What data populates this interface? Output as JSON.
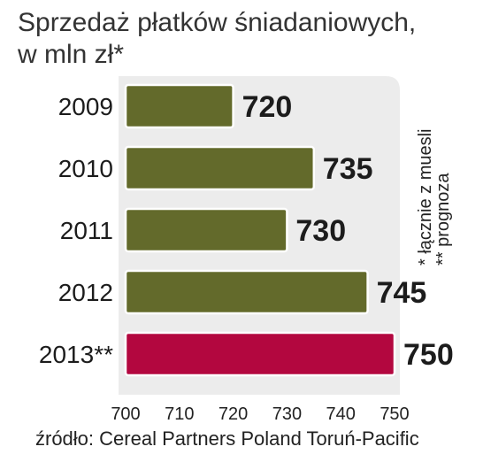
{
  "title_line1": "Sprzedaż płatków śniadaniowych,",
  "title_line2": "w mln zł*",
  "notes": [
    "* łącznie z muesli",
    "** prognoza"
  ],
  "source": "źródło: Cereal Partners Poland Toruń-Pacific",
  "colors": {
    "regular": "#636a2b",
    "forecast": "#b3073f",
    "panel": "#ececec"
  },
  "chart_data": {
    "type": "bar",
    "orientation": "horizontal",
    "categories": [
      "2009",
      "2010",
      "2011",
      "2012",
      "2013**"
    ],
    "values": [
      720,
      735,
      730,
      745,
      750
    ],
    "value_labels": [
      "720",
      "735",
      "730",
      "745",
      "750"
    ],
    "forecast": [
      false,
      false,
      false,
      false,
      true
    ],
    "xlim": [
      700,
      750
    ],
    "xticks": [
      "700",
      "710",
      "720",
      "730",
      "740",
      "750"
    ],
    "grid": false
  }
}
